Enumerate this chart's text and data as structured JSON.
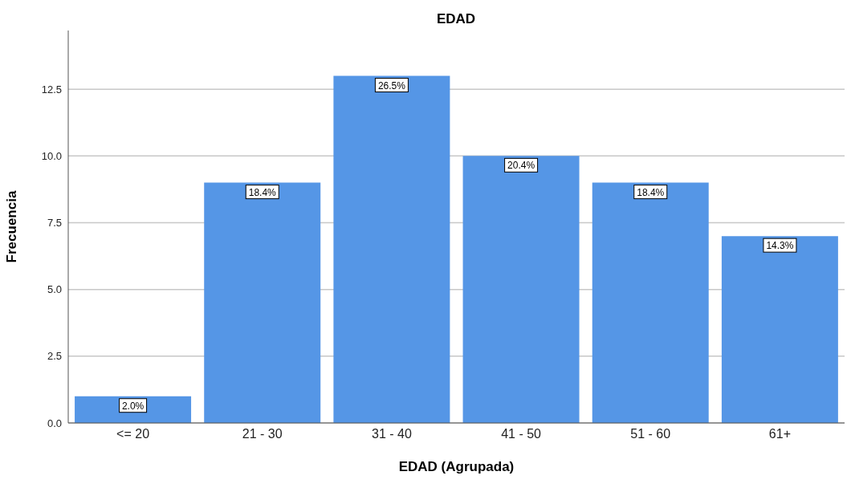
{
  "chart_data": {
    "type": "bar",
    "title": "EDAD",
    "xlabel": "EDAD (Agrupada)",
    "ylabel": "Frecuencia",
    "categories": [
      "<= 20",
      "21 - 30",
      "31 - 40",
      "41 - 50",
      "51 - 60",
      "61+"
    ],
    "values": [
      1,
      9,
      13,
      10,
      9,
      7
    ],
    "annotations": [
      {
        "text": "2.0%",
        "x": "<= 20",
        "y": 1
      },
      {
        "text": "18.4%",
        "x": "21 - 30",
        "y": 9
      },
      {
        "text": "26.5%",
        "x": "31 - 40",
        "y": 13
      },
      {
        "text": "20.4%",
        "x": "41 - 50",
        "y": 10
      },
      {
        "text": "18.4%",
        "x": "51 - 60",
        "y": 9
      },
      {
        "text": "14.3%",
        "x": "61+",
        "y": 7
      }
    ],
    "color": "#5596e6",
    "ylim": [
      0,
      14.7
    ],
    "yticks": [
      {
        "value": 0,
        "label": "0.0"
      },
      {
        "value": 2.5,
        "label": "2.5"
      },
      {
        "value": 5,
        "label": "5.0"
      },
      {
        "value": 7.5,
        "label": "7.5"
      },
      {
        "value": 10,
        "label": "10.0"
      },
      {
        "value": 12.5,
        "label": "12.5"
      }
    ],
    "grid": "y"
  }
}
